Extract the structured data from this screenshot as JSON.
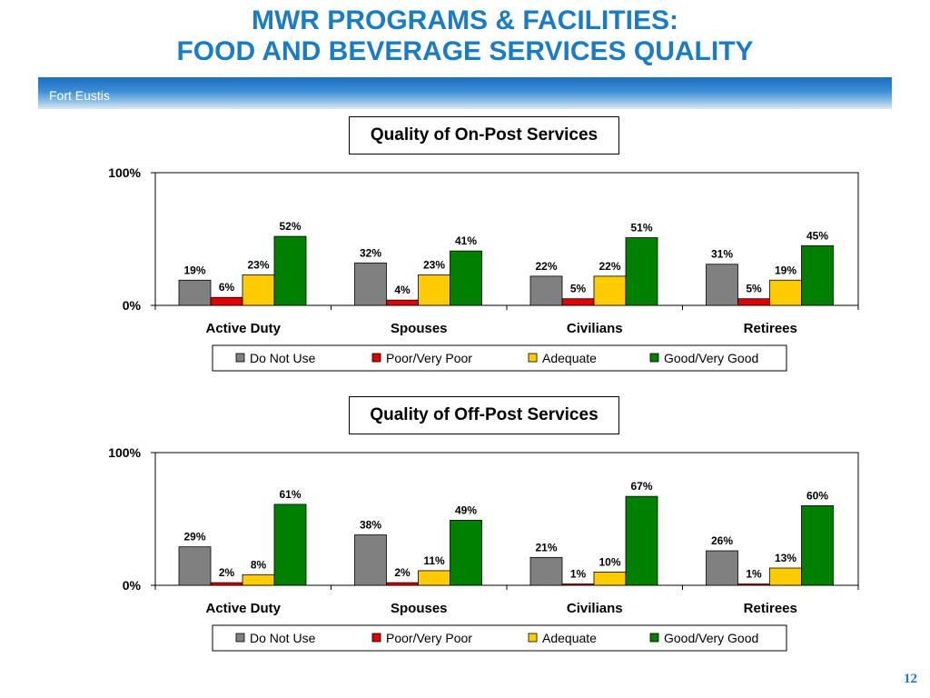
{
  "header": {
    "title_line1": "MWR PROGRAMS & FACILITIES:",
    "title_line2": "FOOD AND BEVERAGE SERVICES QUALITY",
    "band_label": "Fort Eustis"
  },
  "page_number": "12",
  "colors": {
    "title": "#1a7cc4",
    "do_not_use": "#808080",
    "poor": "#e00000",
    "adequate": "#ffcc00",
    "good": "#008000"
  },
  "chart_data": [
    {
      "type": "bar",
      "title": "Quality of On-Post Services",
      "categories": [
        "Active Duty",
        "Spouses",
        "Civilians",
        "Retirees"
      ],
      "ylim": [
        0,
        100
      ],
      "yticks": [
        "0%",
        "100%"
      ],
      "legend": "bottom",
      "series": [
        {
          "name": "Do Not Use",
          "values": [
            19,
            32,
            22,
            31
          ]
        },
        {
          "name": "Poor/Very Poor",
          "values": [
            6,
            4,
            5,
            5
          ]
        },
        {
          "name": "Adequate",
          "values": [
            23,
            23,
            22,
            19
          ]
        },
        {
          "name": "Good/Very Good",
          "values": [
            52,
            41,
            51,
            45
          ]
        }
      ]
    },
    {
      "type": "bar",
      "title": "Quality of Off-Post Services",
      "categories": [
        "Active Duty",
        "Spouses",
        "Civilians",
        "Retirees"
      ],
      "ylim": [
        0,
        100
      ],
      "yticks": [
        "0%",
        "100%"
      ],
      "legend": "bottom",
      "series": [
        {
          "name": "Do Not Use",
          "values": [
            29,
            38,
            21,
            26
          ]
        },
        {
          "name": "Poor/Very Poor",
          "values": [
            2,
            2,
            1,
            1
          ]
        },
        {
          "name": "Adequate",
          "values": [
            8,
            11,
            10,
            13
          ]
        },
        {
          "name": "Good/Very Good",
          "values": [
            61,
            49,
            67,
            60
          ]
        }
      ]
    }
  ]
}
